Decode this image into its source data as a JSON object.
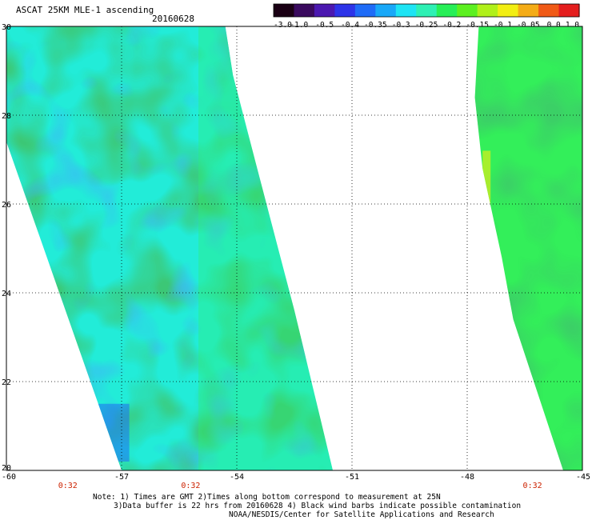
{
  "header": {
    "title": "ASCAT 25KM MLE-1 ascending",
    "date": "20160628"
  },
  "colorbar": {
    "labels": [
      "-3.0",
      "-1.0",
      "-0.5",
      "-0.4",
      "-0.35",
      "-0.3",
      "-0.25",
      "-0.2",
      "-0.15",
      "-0.1",
      "-0.05",
      "0.0",
      "1.0"
    ],
    "colors": [
      "#1a0014",
      "#3a0a5e",
      "#4b18b0",
      "#2d34e8",
      "#1f6cf7",
      "#19a8f8",
      "#1ee4f4",
      "#2ef0b4",
      "#27ef57",
      "#5cf020",
      "#b0f01a",
      "#f2ee12",
      "#f4ac16",
      "#f05a16",
      "#e41e1e"
    ]
  },
  "map": {
    "lon_min": -60,
    "lon_max": -45,
    "lat_min": 20,
    "lat_max": 30,
    "lon_ticks": [
      "-60",
      "-57",
      "-54",
      "-51",
      "-48",
      "-45"
    ],
    "lon_values": [
      -60,
      -57,
      -54,
      -51,
      -48,
      -45
    ],
    "lat_ticks": [
      "30",
      "28",
      "26",
      "24",
      "22",
      "20"
    ],
    "lat_values": [
      30,
      28,
      26,
      24,
      22,
      20
    ],
    "times": [
      {
        "label": "0:32",
        "lon": -58.4
      },
      {
        "label": "0:32",
        "lon": -55.2
      },
      {
        "label": "0:32",
        "lon": -46.3
      }
    ],
    "time_color": "#cc2200",
    "swaths": [
      {
        "name": "west-swath",
        "polygon": [
          [
            -60,
            30
          ],
          [
            -54.3,
            30
          ],
          [
            -54.1,
            28.9
          ],
          [
            -53.5,
            26.9
          ],
          [
            -52.5,
            23.6
          ],
          [
            -51.5,
            20
          ],
          [
            -57.0,
            20
          ],
          [
            -60,
            27.4
          ]
        ]
      },
      {
        "name": "east-swath",
        "polygon": [
          [
            -47.7,
            30
          ],
          [
            -45,
            30
          ],
          [
            -45,
            20
          ],
          [
            -45.5,
            20
          ],
          [
            -46.8,
            23.4
          ],
          [
            -47.1,
            24.8
          ],
          [
            -47.6,
            26.8
          ],
          [
            -47.8,
            28.4
          ]
        ]
      }
    ]
  },
  "notes": {
    "line1": "Note: 1) Times are GMT 2)Times along bottom correspond to measurement at 25N",
    "line2": "3)Data buffer is 22 hrs from 20160628 4) Black wind barbs indicate possible contamination",
    "line3": "NOAA/NESDIS/Center for Satellite Applications and Research"
  }
}
